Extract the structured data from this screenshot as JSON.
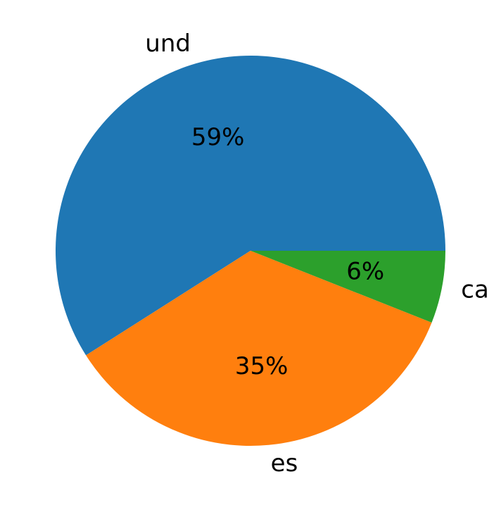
{
  "chart_data": {
    "type": "pie",
    "categories": [
      "und",
      "es",
      "ca"
    ],
    "values": [
      59,
      35,
      6
    ],
    "value_labels": [
      "59%",
      "35%",
      "6%"
    ],
    "colors": [
      "#1f77b4",
      "#ff7f0e",
      "#2ca02c"
    ]
  }
}
